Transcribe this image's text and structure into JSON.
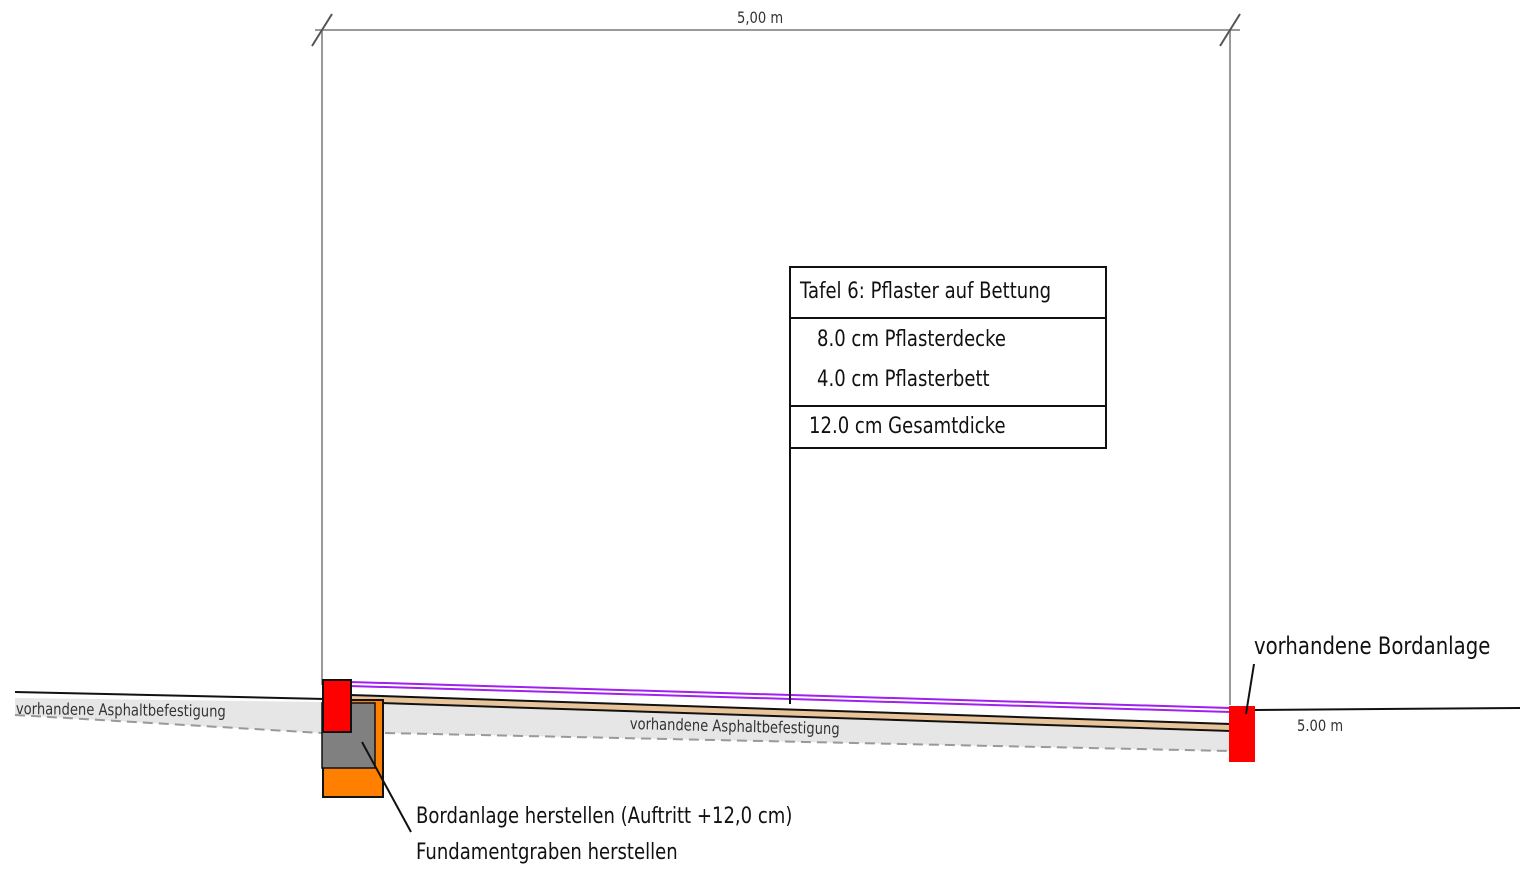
{
  "dimension_top": "5,00 m",
  "dimension_right": "5.00 m",
  "legend": {
    "title": "Tafel 6: Pflaster auf Bettung",
    "layers": [
      "8.0 cm Pflasterdecke",
      "4.0 cm Pflasterbett"
    ],
    "total": "12.0 cm Gesamtdicke"
  },
  "labels": {
    "asphalt_left": "vorhandene Asphaltbefestigung",
    "asphalt_center": "vorhandene Asphaltbefestigung",
    "curb_existing": "vorhandene Bordanlage",
    "curb_new_line1": "Bordanlage herstellen (Auftritt +12,0 cm)",
    "curb_new_line2": "Fundamentgraben herstellen"
  },
  "colors": {
    "curb_red": "#ff0000",
    "foundation_orange": "#ff7f00",
    "concrete_gray": "#808080",
    "surface_purple": "#a020f0",
    "bedding_tan": "#e8c49a",
    "asphalt_fill": "#e6e6e6"
  }
}
